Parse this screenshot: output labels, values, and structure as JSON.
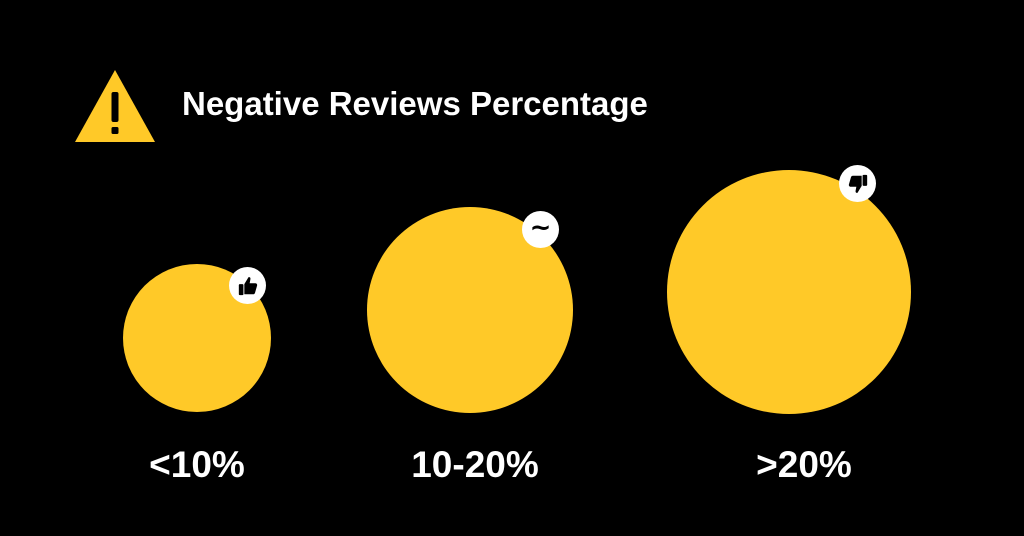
{
  "title": "Negative Reviews Percentage",
  "colors": {
    "background": "#000000",
    "accent": "#FFC928",
    "text": "#FFFFFF",
    "badge": "#FFFFFF"
  },
  "header": {
    "icon": "warning-triangle-icon"
  },
  "categories": [
    {
      "label": "<10%",
      "icon": "thumbs-up-icon"
    },
    {
      "label": "10-20%",
      "icon": "tilde-icon",
      "symbol": "~"
    },
    {
      "label": ">20%",
      "icon": "thumbs-down-icon"
    }
  ]
}
